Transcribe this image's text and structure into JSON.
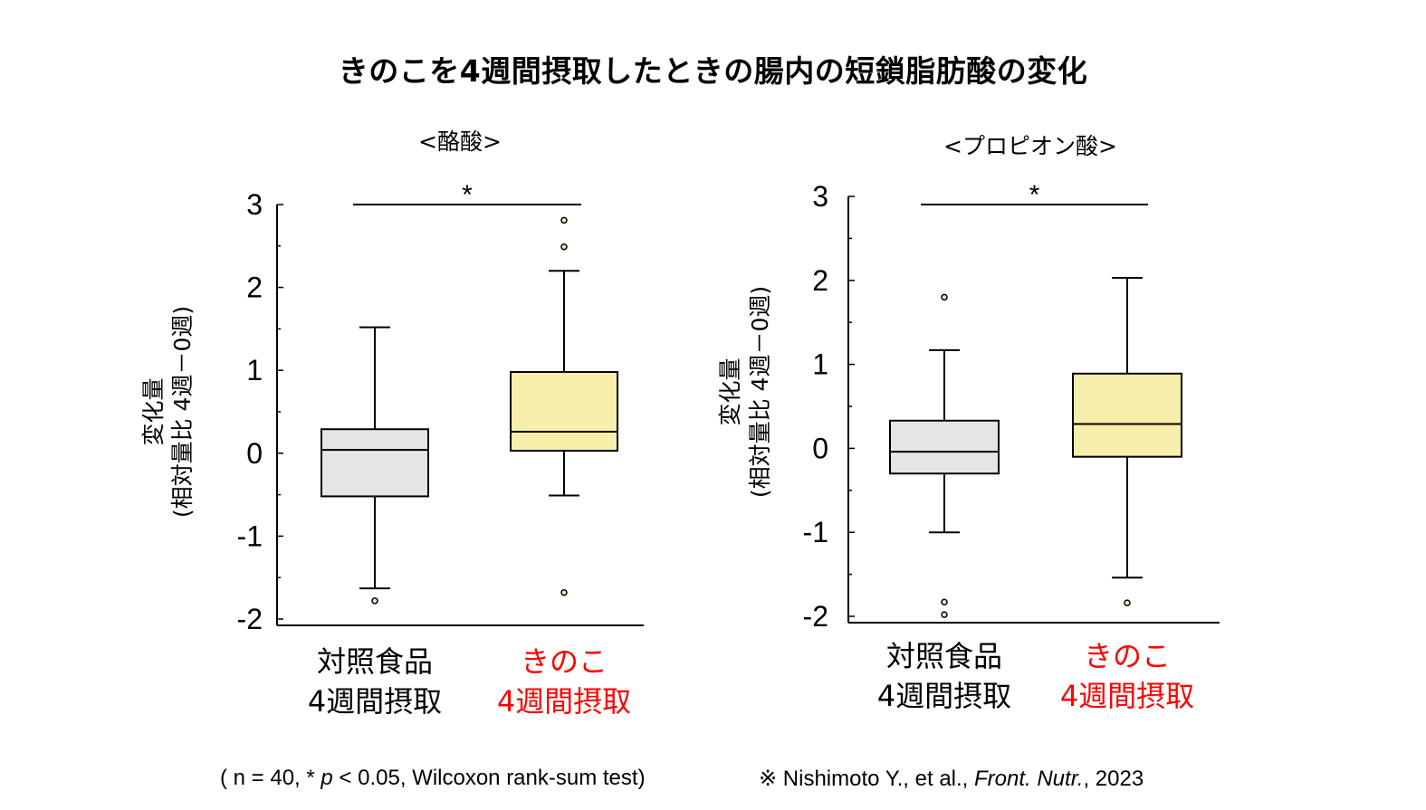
{
  "title": "きのこを4週間摂取したときの腸内の短鎖脂肪酸の変化",
  "footnotes": {
    "stats": [
      "( n = 40, * ",
      "p",
      " < 0.05, Wilcoxon rank-sum test)"
    ],
    "citation": [
      "※ Nishimoto Y., et al., ",
      "Front. Nutr.",
      ", 2023"
    ]
  },
  "colors": {
    "control_fill": "#e5e5e5",
    "mushroom_fill": "#f8eeac",
    "mushroom_text": "#ff0000",
    "axis": "#000000"
  },
  "chart_data": [
    {
      "type": "box",
      "title": "<酪酸>",
      "ylabel": [
        "変化量",
        "(相対量比 4週－0週)"
      ],
      "ylim": [
        -2,
        3
      ],
      "yticks": [
        "3",
        "2",
        "1",
        "0",
        "-1",
        "-2"
      ],
      "significance": "*",
      "categories": [
        {
          "label": [
            "対照食品",
            "4週間摂取"
          ],
          "group": "control"
        },
        {
          "label": [
            "きのこ",
            "4週間摂取"
          ],
          "group": "mushroom"
        }
      ],
      "boxes": [
        {
          "whisker_low": -1.63,
          "q1": -0.52,
          "median": 0.04,
          "q3": 0.29,
          "whisker_high": 1.52,
          "outliers": [
            -1.78
          ]
        },
        {
          "whisker_low": -0.51,
          "q1": 0.03,
          "median": 0.26,
          "q3": 0.98,
          "whisker_high": 2.2,
          "outliers": [
            2.81,
            2.49,
            -1.68
          ]
        }
      ]
    },
    {
      "type": "box",
      "title": "<プロピオン酸>",
      "ylabel": [
        "変化量",
        "(相対量比 4週－0週)"
      ],
      "ylim": [
        -2,
        3
      ],
      "yticks": [
        "3",
        "2",
        "1",
        "0",
        "-1",
        "-2"
      ],
      "significance": "*",
      "categories": [
        {
          "label": [
            "対照食品",
            "4週間摂取"
          ],
          "group": "control"
        },
        {
          "label": [
            "きのこ",
            "4週間摂取"
          ],
          "group": "mushroom"
        }
      ],
      "boxes": [
        {
          "whisker_low": -1.0,
          "q1": -0.3,
          "median": -0.04,
          "q3": 0.33,
          "whisker_high": 1.17,
          "outliers": [
            1.8,
            -1.83,
            -1.98
          ]
        },
        {
          "whisker_low": -1.54,
          "q1": -0.1,
          "median": 0.29,
          "q3": 0.89,
          "whisker_high": 2.03,
          "outliers": [
            -1.84
          ]
        }
      ]
    }
  ]
}
